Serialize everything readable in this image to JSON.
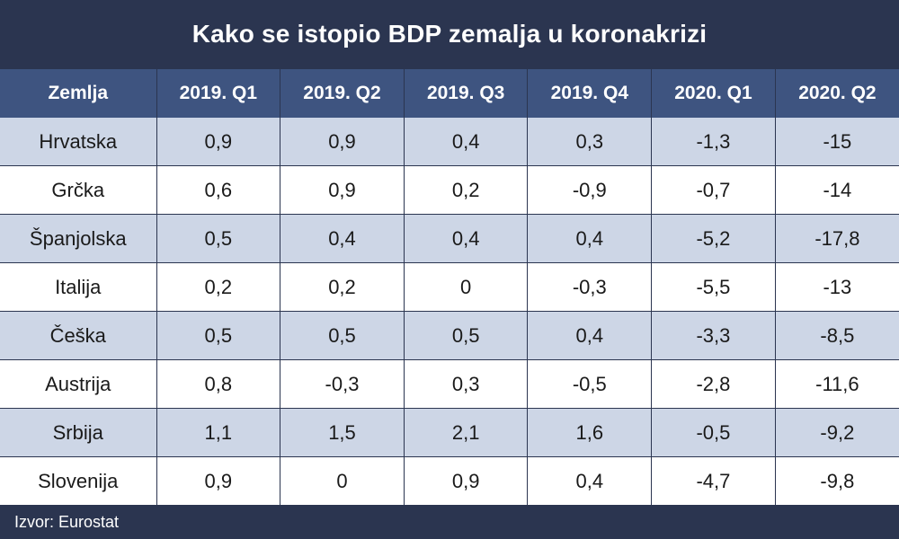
{
  "title": "Kako se istopio BDP zemalja u koronakrizi",
  "source": "Izvor: Eurostat",
  "colors": {
    "header": "#2b3550",
    "column_header": "#3e5480",
    "row_stripe": "#cdd6e6",
    "row_plain": "#ffffff"
  },
  "chart_data": {
    "type": "table",
    "title": "Kako se istopio BDP zemalja u koronakrizi",
    "columns": [
      "Zemlja",
      "2019. Q1",
      "2019. Q2",
      "2019. Q3",
      "2019. Q4",
      "2020. Q1",
      "2020. Q2"
    ],
    "rows": [
      [
        "Hrvatska",
        "0,9",
        "0,9",
        "0,4",
        "0,3",
        "-1,3",
        "-15"
      ],
      [
        "Grčka",
        "0,6",
        "0,9",
        "0,2",
        "-0,9",
        "-0,7",
        "-14"
      ],
      [
        "Španjolska",
        "0,5",
        "0,4",
        "0,4",
        "0,4",
        "-5,2",
        "-17,8"
      ],
      [
        "Italija",
        "0,2",
        "0,2",
        "0",
        "-0,3",
        "-5,5",
        "-13"
      ],
      [
        "Češka",
        "0,5",
        "0,5",
        "0,5",
        "0,4",
        "-3,3",
        "-8,5"
      ],
      [
        "Austrija",
        "0,8",
        "-0,3",
        "0,3",
        "-0,5",
        "-2,8",
        "-11,6"
      ],
      [
        "Srbija",
        "1,1",
        "1,5",
        "2,1",
        "1,6",
        "-0,5",
        "-9,2"
      ],
      [
        "Slovenija",
        "0,9",
        "0",
        "0,9",
        "0,4",
        "-4,7",
        "-9,8"
      ]
    ],
    "source": "Izvor: Eurostat"
  }
}
